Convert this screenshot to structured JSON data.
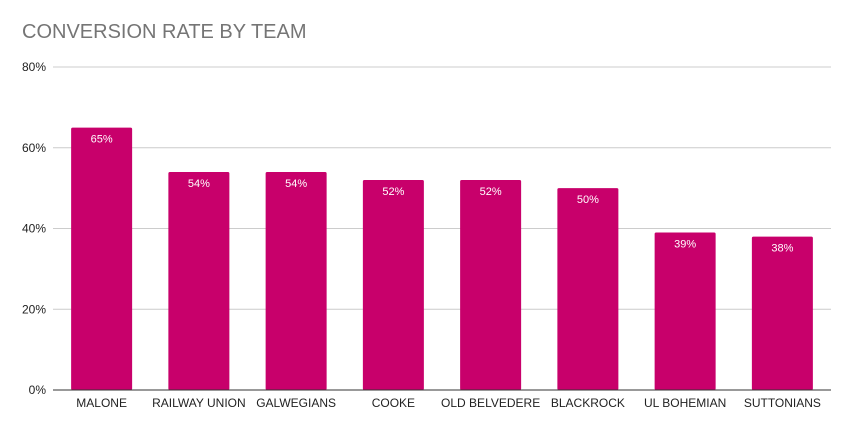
{
  "chart_data": {
    "type": "bar",
    "title": "CONVERSION RATE BY TEAM",
    "categories": [
      "MALONE",
      "RAILWAY UNION",
      "GALWEGIANS",
      "COOKE",
      "OLD BELVEDERE",
      "BLACKROCK",
      "UL BOHEMIAN",
      "SUTTONIANS"
    ],
    "values": [
      65,
      54,
      54,
      52,
      52,
      50,
      39,
      38
    ],
    "data_labels": [
      "65%",
      "54%",
      "54%",
      "52%",
      "52%",
      "50%",
      "39%",
      "38%"
    ],
    "ylim": [
      0,
      80
    ],
    "yticks": [
      0,
      20,
      40,
      60,
      80
    ],
    "ytick_labels": [
      "0%",
      "20%",
      "40%",
      "60%",
      "80%"
    ],
    "xlabel": "",
    "ylabel": "",
    "grid": true,
    "legend": "none",
    "colors": {
      "bar": "#c8006b",
      "grid": "#cccccc",
      "axis": "#333333",
      "title": "#757575"
    }
  }
}
